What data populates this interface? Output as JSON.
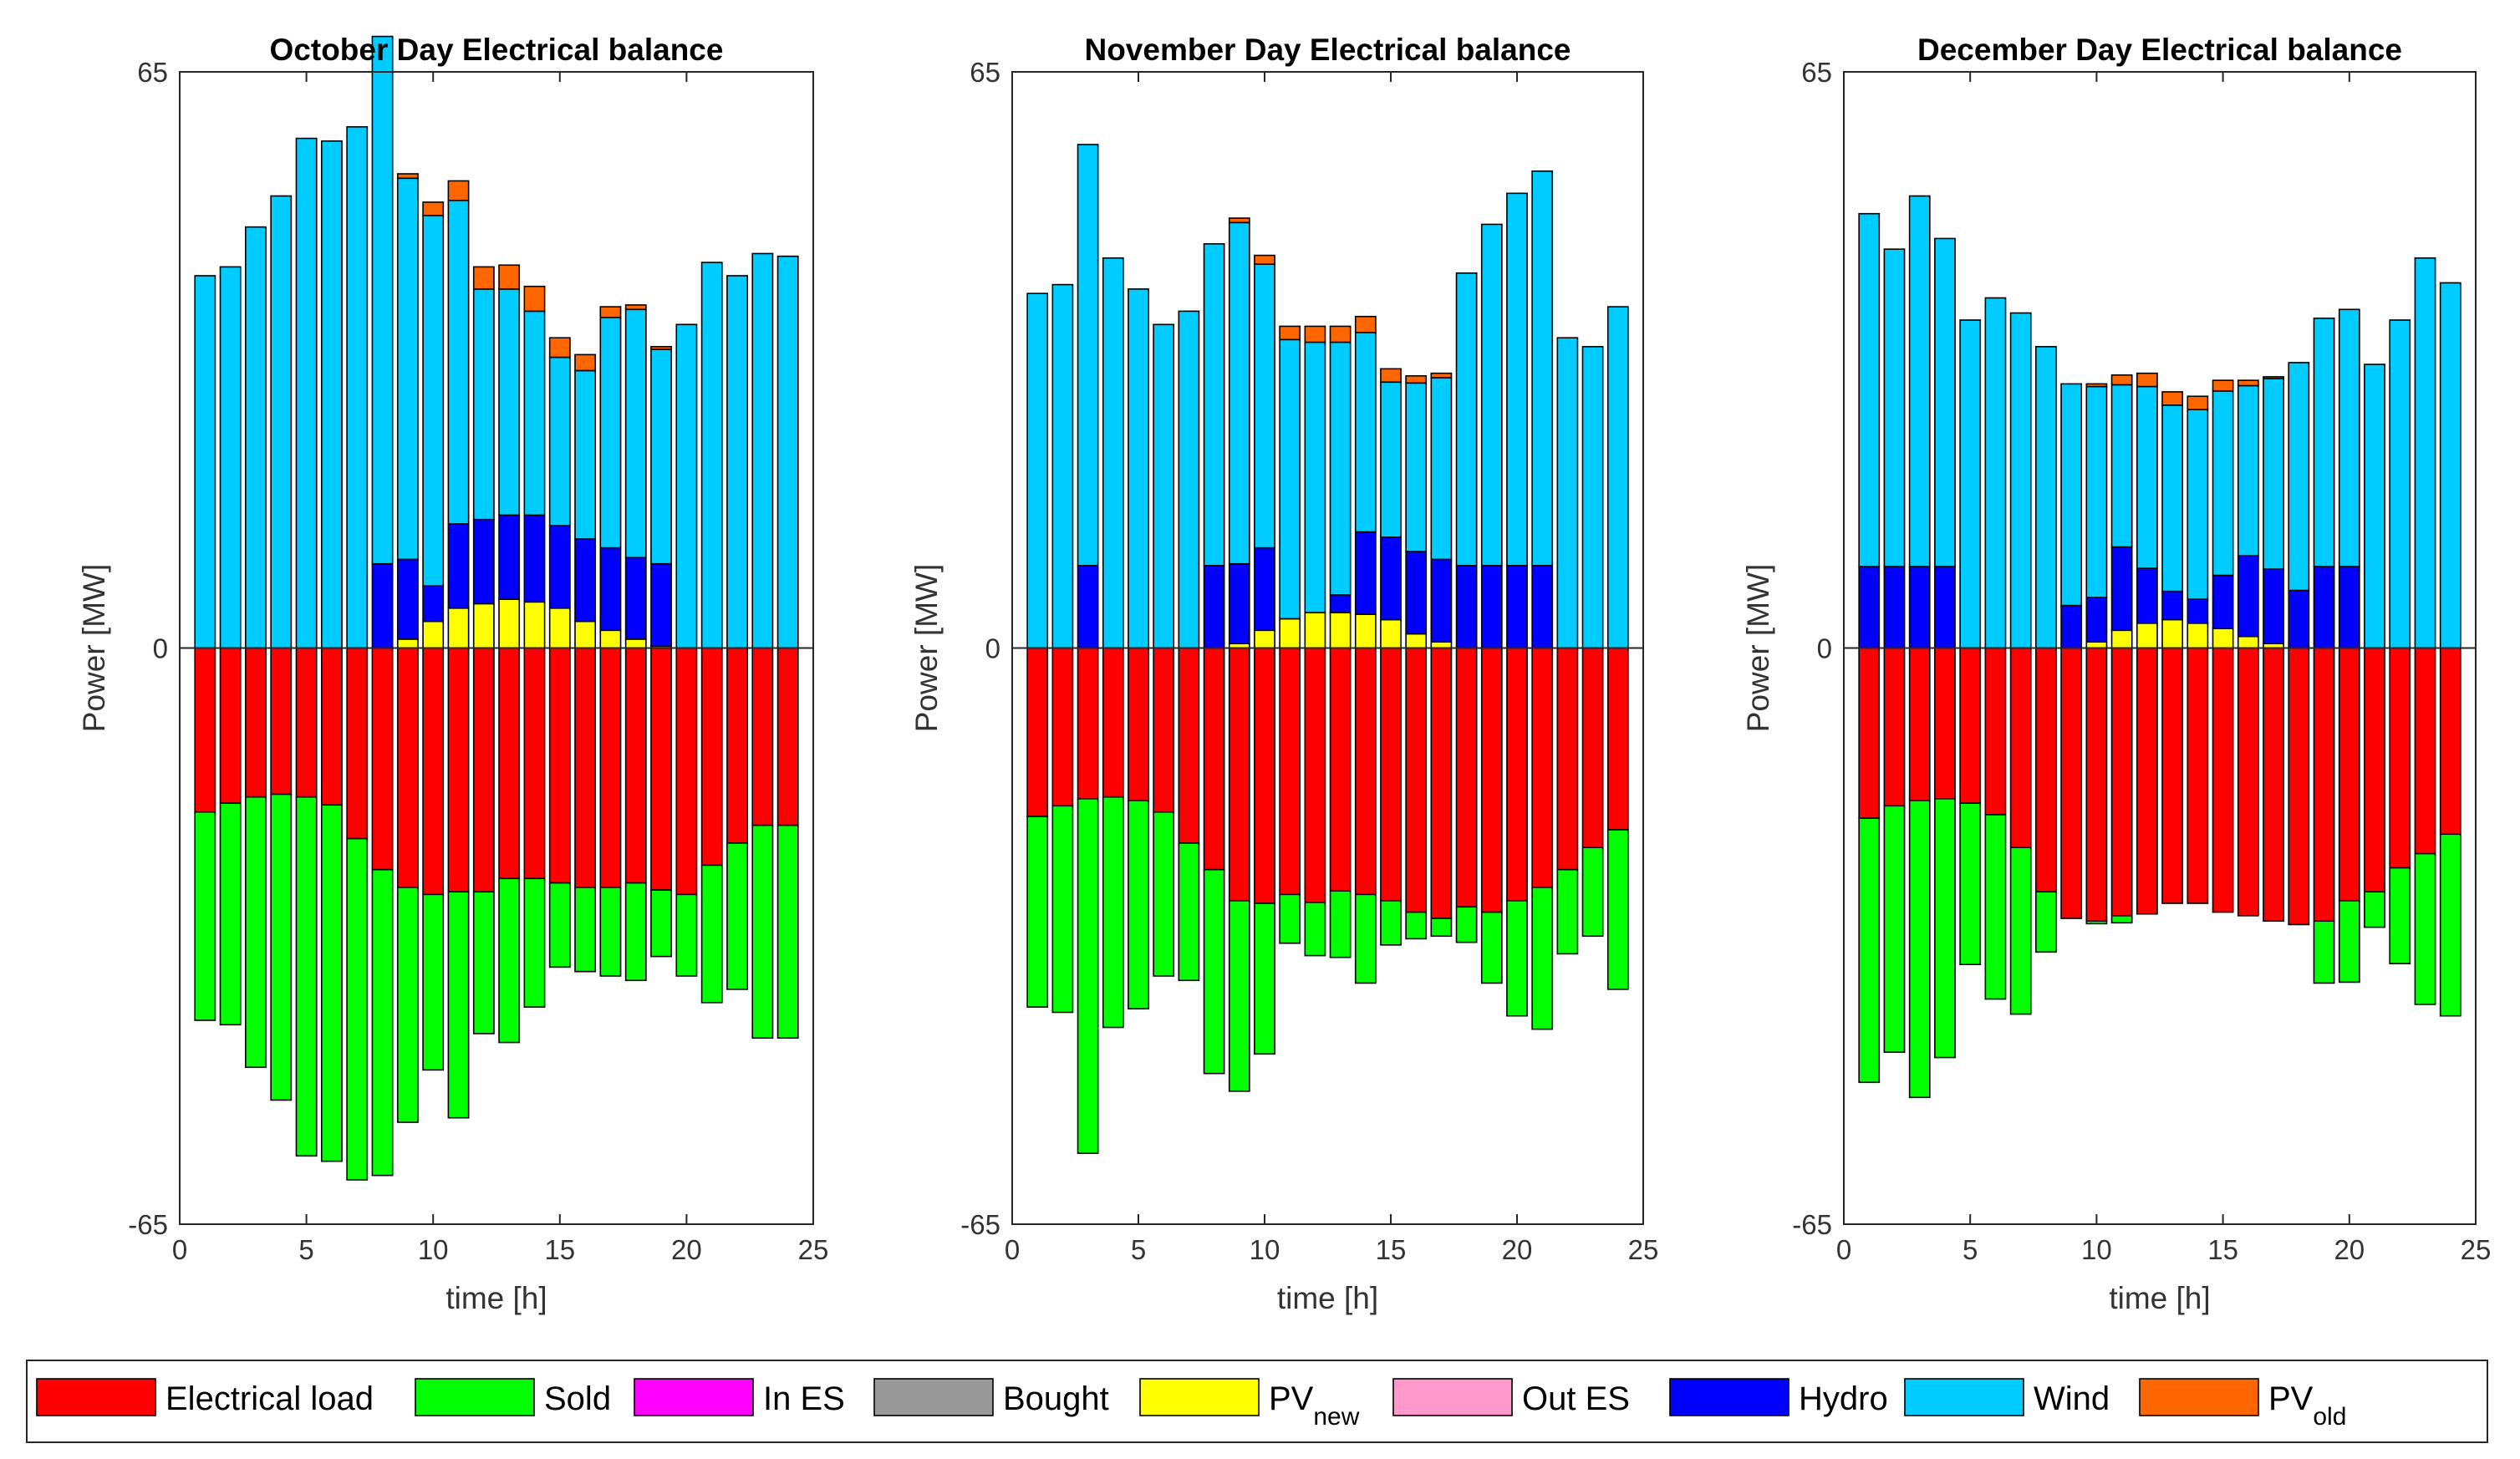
{
  "chart_data": [
    {
      "type": "bar",
      "stacked": true,
      "title": "October Day Electrical balance",
      "xlabel": "time [h]",
      "ylabel": "Power [MW]",
      "xlim": [
        0,
        25
      ],
      "ylim": [
        -65,
        65
      ],
      "xticks": [
        "0",
        "5",
        "10",
        "15",
        "20",
        "25"
      ],
      "yticks": [
        "65",
        "0",
        "-65"
      ],
      "x": [
        1,
        2,
        3,
        4,
        5,
        6,
        7,
        8,
        9,
        10,
        11,
        12,
        13,
        14,
        15,
        16,
        17,
        18,
        19,
        20,
        21,
        22,
        23,
        24
      ],
      "series": [
        {
          "name": "PV_new",
          "values": [
            0,
            0,
            0,
            0,
            0,
            0,
            0,
            0,
            1,
            3,
            4.5,
            5,
            5.5,
            5.2,
            4.5,
            3,
            2,
            1,
            0.2,
            0,
            0,
            0,
            0,
            0
          ]
        },
        {
          "name": "Hydro",
          "values": [
            0,
            0,
            0,
            0,
            0,
            0,
            0,
            9.5,
            9,
            4,
            9.5,
            9.5,
            9.5,
            9.8,
            9.3,
            9.3,
            9.3,
            9.2,
            9.3,
            0,
            0,
            0,
            0,
            0
          ]
        },
        {
          "name": "Wind",
          "values": [
            42,
            43,
            47.5,
            51,
            57.5,
            57.2,
            58.8,
            59.5,
            43,
            41.8,
            36.5,
            26,
            25.5,
            23,
            19,
            19,
            26,
            28,
            24.2,
            36.5,
            43.5,
            42,
            44.5,
            44.2
          ]
        },
        {
          "name": "PV_old",
          "values": [
            0,
            0,
            0,
            0,
            0,
            0,
            0,
            0,
            0.5,
            1.5,
            2.2,
            2.5,
            2.7,
            2.8,
            2.2,
            1.8,
            1.2,
            0.5,
            0.3,
            0,
            0,
            0,
            0,
            0
          ]
        },
        {
          "name": "Electrical load",
          "values": [
            -18.5,
            -17.5,
            -16.8,
            -16.5,
            -16.8,
            -17.7,
            -21.5,
            -25,
            -27,
            -27.8,
            -27.5,
            -27.5,
            -26,
            -26,
            -26.5,
            -27,
            -27,
            -26.5,
            -27.3,
            -27.8,
            -24.5,
            -22,
            -20,
            -20
          ]
        },
        {
          "name": "Sold",
          "values": [
            -23.5,
            -25,
            -30.5,
            -34.5,
            -40.5,
            -40.2,
            -38.5,
            -34.5,
            -26.5,
            -19.8,
            -25.5,
            -16,
            -18.5,
            -14.5,
            -9.5,
            -9.5,
            -10,
            -11,
            -7.5,
            -9.2,
            -15.5,
            -16.5,
            -24,
            -24
          ]
        }
      ]
    },
    {
      "type": "bar",
      "stacked": true,
      "title": "November Day Electrical balance",
      "xlabel": "time [h]",
      "ylabel": "Power [MW]",
      "xlim": [
        0,
        25
      ],
      "ylim": [
        -65,
        65
      ],
      "xticks": [
        "0",
        "5",
        "10",
        "15",
        "20",
        "25"
      ],
      "yticks": [
        "65",
        "0",
        "-65"
      ],
      "x": [
        1,
        2,
        3,
        4,
        5,
        6,
        7,
        8,
        9,
        10,
        11,
        12,
        13,
        14,
        15,
        16,
        17,
        18,
        19,
        20,
        21,
        22,
        23,
        24
      ],
      "series": [
        {
          "name": "PV_new",
          "values": [
            0,
            0,
            0,
            0,
            0,
            0,
            0,
            0,
            0.5,
            2,
            3.3,
            4,
            4,
            3.8,
            3.2,
            1.6,
            0.7,
            0,
            0,
            0,
            0,
            0,
            0,
            0
          ]
        },
        {
          "name": "Hydro",
          "values": [
            0,
            0,
            9.3,
            0,
            0,
            0,
            0,
            9.3,
            9,
            9.3,
            0,
            0,
            2,
            9.3,
            9.3,
            9.3,
            9.3,
            9.3,
            9.3,
            9.3,
            9.3,
            0,
            0,
            0
          ]
        },
        {
          "name": "Wind",
          "values": [
            40,
            41,
            47.5,
            44,
            40.5,
            36.5,
            38,
            36.3,
            38.5,
            32,
            31.5,
            30.5,
            28.5,
            22.5,
            17.5,
            19,
            20.5,
            33,
            38.5,
            42,
            44.5,
            35,
            34,
            38.5
          ]
        },
        {
          "name": "PV_old",
          "values": [
            0,
            0,
            0,
            0,
            0,
            0,
            0,
            0,
            0.5,
            1,
            1.5,
            1.8,
            1.8,
            1.8,
            1.5,
            0.8,
            0.5,
            0,
            0,
            0,
            0,
            0,
            0,
            0
          ]
        },
        {
          "name": "Electrical load",
          "values": [
            -19,
            -17.8,
            -17,
            -16.8,
            -17.2,
            -18.5,
            -22,
            -25,
            -28.5,
            -28.8,
            -27.8,
            -28.7,
            -27.4,
            -27.8,
            -28.5,
            -29.8,
            -30.5,
            -29.2,
            -29.8,
            -28.5,
            -27,
            -25,
            -22.5,
            -20.5
          ]
        },
        {
          "name": "Sold",
          "values": [
            -21.5,
            -23.3,
            -40,
            -26,
            -23.5,
            -18.5,
            -15.5,
            -23,
            -21.5,
            -17,
            -5.5,
            -6,
            -7.5,
            -10,
            -5,
            -3,
            -2,
            -4,
            -8,
            -13,
            -16,
            -9.5,
            -10,
            -18
          ]
        }
      ]
    },
    {
      "type": "bar",
      "stacked": true,
      "title": "December Day Electrical balance",
      "xlabel": "time [h]",
      "ylabel": "Power [MW]",
      "xlim": [
        0,
        25
      ],
      "ylim": [
        -65,
        65
      ],
      "xticks": [
        "0",
        "5",
        "10",
        "15",
        "20",
        "25"
      ],
      "yticks": [
        "65",
        "0",
        "-65"
      ],
      "x": [
        1,
        2,
        3,
        4,
        5,
        6,
        7,
        8,
        9,
        10,
        11,
        12,
        13,
        14,
        15,
        16,
        17,
        18,
        19,
        20,
        21,
        22,
        23,
        24
      ],
      "series": [
        {
          "name": "PV_new",
          "values": [
            0,
            0,
            0,
            0,
            0,
            0,
            0,
            0,
            0,
            0.7,
            2,
            2.8,
            3.2,
            2.8,
            2.2,
            1.3,
            0.5,
            0,
            0,
            0,
            0,
            0,
            0,
            0
          ]
        },
        {
          "name": "Hydro",
          "values": [
            9.2,
            9.2,
            9.2,
            9.2,
            0,
            0,
            0,
            0,
            4.8,
            5,
            9.4,
            6.2,
            3.2,
            2.7,
            6,
            9.1,
            8.4,
            6.5,
            9.2,
            9.2,
            0,
            0,
            0,
            0
          ]
        },
        {
          "name": "Wind",
          "values": [
            39.8,
            35.8,
            41.8,
            37,
            37,
            39.5,
            37.8,
            34,
            25,
            23.8,
            18.3,
            20.5,
            21,
            21.4,
            20.8,
            19.2,
            21.5,
            25.7,
            28,
            29,
            32,
            37,
            44,
            41.2
          ]
        },
        {
          "name": "PV_old",
          "values": [
            0,
            0,
            0,
            0,
            0,
            0,
            0,
            0,
            0,
            0.3,
            1.1,
            1.5,
            1.5,
            1.5,
            1.2,
            0.6,
            0.2,
            0,
            0,
            0,
            0,
            0,
            0,
            0
          ]
        },
        {
          "name": "Electrical load",
          "values": [
            -19.2,
            -17.8,
            -17.2,
            -17,
            -17.5,
            -18.8,
            -22.5,
            -27.5,
            -30.5,
            -30.8,
            -30.2,
            -30,
            -28.8,
            -28.8,
            -29.8,
            -30.2,
            -30.8,
            -31.2,
            -30.8,
            -28.5,
            -27.5,
            -24.8,
            -23.2,
            -21
          ]
        },
        {
          "name": "Sold",
          "values": [
            -29.8,
            -27.8,
            -33.5,
            -29.2,
            -18.2,
            -20.8,
            -18.8,
            -6.8,
            0,
            -0.3,
            -0.8,
            0,
            0,
            0,
            0,
            0,
            0,
            0,
            -7,
            -9.2,
            -4,
            -10.8,
            -17,
            -20.5
          ]
        }
      ]
    }
  ],
  "legend": {
    "items": [
      {
        "label": "Electrical load",
        "sub": "",
        "color": "#ff0000"
      },
      {
        "label": "Sold",
        "sub": "",
        "color": "#00ff00"
      },
      {
        "label": "In ES",
        "sub": "",
        "color": "#ff00ff"
      },
      {
        "label": "Bought",
        "sub": "",
        "color": "#999999"
      },
      {
        "label": "PV",
        "sub": "new",
        "color": "#ffff00"
      },
      {
        "label": "Out ES",
        "sub": "",
        "color": "#ff99cc"
      },
      {
        "label": "Hydro",
        "sub": "",
        "color": "#0000ff"
      },
      {
        "label": "Wind",
        "sub": "",
        "color": "#00ccff"
      },
      {
        "label": "PV",
        "sub": "old",
        "color": "#ff6600"
      }
    ]
  },
  "colors": {
    "PV_new": "#ffff00",
    "Hydro": "#0000ff",
    "Wind": "#00ccff",
    "PV_old": "#ff6600",
    "Electrical load": "#ff0000",
    "Sold": "#00ff00"
  }
}
